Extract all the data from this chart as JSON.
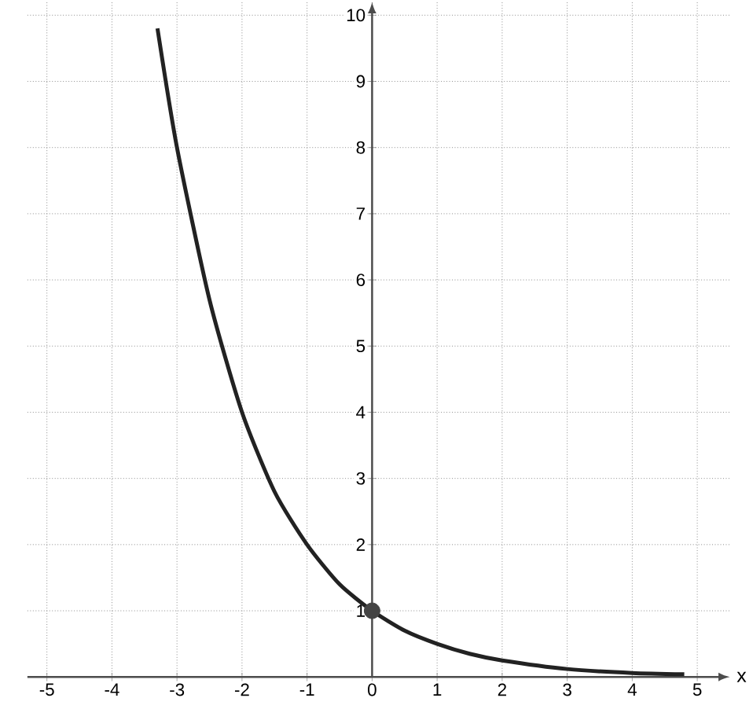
{
  "chart_data": {
    "type": "line",
    "xlabel": "x",
    "series": [
      {
        "color": "#222222",
        "marker": "none",
        "x": [
          -3.3,
          -3,
          -2.5,
          -2,
          -1.5,
          -1,
          -0.5,
          0,
          0.5,
          1,
          1.5,
          2,
          3,
          4,
          4.8
        ],
        "values": [
          9.8,
          8,
          5.7,
          4,
          2.8,
          2,
          1.4,
          1,
          0.7,
          0.5,
          0.35,
          0.25,
          0.12,
          0.06,
          0.04
        ]
      },
      {
        "type": "scatter",
        "color": "#444444",
        "marker": "circle",
        "x": [
          0
        ],
        "values": [
          1
        ]
      }
    ],
    "xlim": [
      -5.3,
      5.5
    ],
    "ylim": [
      0,
      10.2
    ],
    "xticks": [
      -5,
      -4,
      -3,
      -2,
      -1,
      0,
      1,
      2,
      3,
      4,
      5
    ],
    "yticks": [
      1,
      2,
      3,
      4,
      5,
      6,
      7,
      8,
      9,
      10
    ],
    "grid": true
  }
}
